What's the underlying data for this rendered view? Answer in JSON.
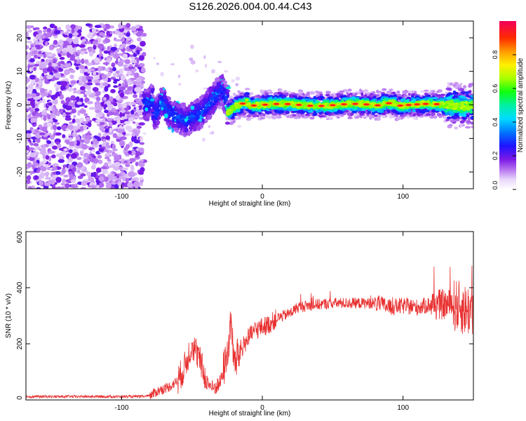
{
  "title": "S126.2026.004.00.44.C43",
  "chart_data": [
    {
      "type": "heatmap",
      "xlabel": "Height of straight line (km)",
      "ylabel": "Frequency (Hz)",
      "xlim": [
        -168,
        150
      ],
      "ylim": [
        -25,
        25
      ],
      "xticks": [
        -100,
        0,
        100
      ],
      "xtick_labels": [
        "-100",
        "0",
        "100"
      ],
      "yticks": [
        -20,
        -10,
        0,
        10,
        20
      ],
      "ytick_labels": [
        "-20",
        "-10",
        "0",
        "10",
        "20"
      ],
      "colorbar": {
        "label": "Normalized spectral amplitude",
        "range": [
          0,
          1
        ],
        "ticks": [
          0,
          0.2,
          0.4,
          0.6,
          0.8
        ],
        "tick_labels": [
          "0.0",
          "0.2",
          "0.4",
          "0.6",
          "0.8"
        ],
        "colormap": "rainbow"
      },
      "regions": [
        {
          "name": "noise",
          "x_range": [
            -168,
            -84
          ],
          "f_range": [
            -25,
            24
          ],
          "amplitude": 0.2
        },
        {
          "name": "transition",
          "x_range": [
            -84,
            -25
          ],
          "f_center": [
            2,
            0,
            -4,
            -6,
            2,
            5
          ],
          "amplitude": 0.25
        },
        {
          "name": "signal",
          "x_range": [
            -25,
            150
          ],
          "f_center": 0,
          "amplitude": 0.9
        }
      ]
    },
    {
      "type": "line",
      "xlabel": "Height of straight line (km)",
      "ylabel": "SNR (10 * v/v)",
      "xlim": [
        -168,
        150
      ],
      "ylim": [
        0,
        600
      ],
      "xticks": [
        -100,
        0,
        100
      ],
      "xtick_labels": [
        "-100",
        "0",
        "100"
      ],
      "yticks": [
        0,
        200,
        400,
        600
      ],
      "ytick_labels": [
        "0",
        "200",
        "400",
        "600"
      ],
      "series": [
        {
          "name": "SNR",
          "color": "#e83030",
          "x": [
            -168,
            -150,
            -120,
            -100,
            -85,
            -80,
            -75,
            -70,
            -65,
            -60,
            -55,
            -50,
            -45,
            -40,
            -35,
            -30,
            -25,
            -22,
            -20,
            -17,
            -15,
            -10,
            -5,
            0,
            5,
            10,
            15,
            20,
            25,
            30,
            40,
            50,
            60,
            70,
            80,
            85,
            90,
            100,
            110,
            120,
            130,
            135,
            140,
            145,
            150
          ],
          "y": [
            12,
            12,
            12,
            12,
            12,
            14,
            30,
            40,
            50,
            70,
            120,
            200,
            150,
            70,
            40,
            60,
            160,
            280,
            120,
            160,
            180,
            220,
            250,
            260,
            270,
            290,
            300,
            310,
            330,
            335,
            340,
            345,
            345,
            345,
            345,
            340,
            330,
            335,
            330,
            340,
            340,
            340,
            330,
            320,
            320
          ]
        }
      ]
    }
  ]
}
